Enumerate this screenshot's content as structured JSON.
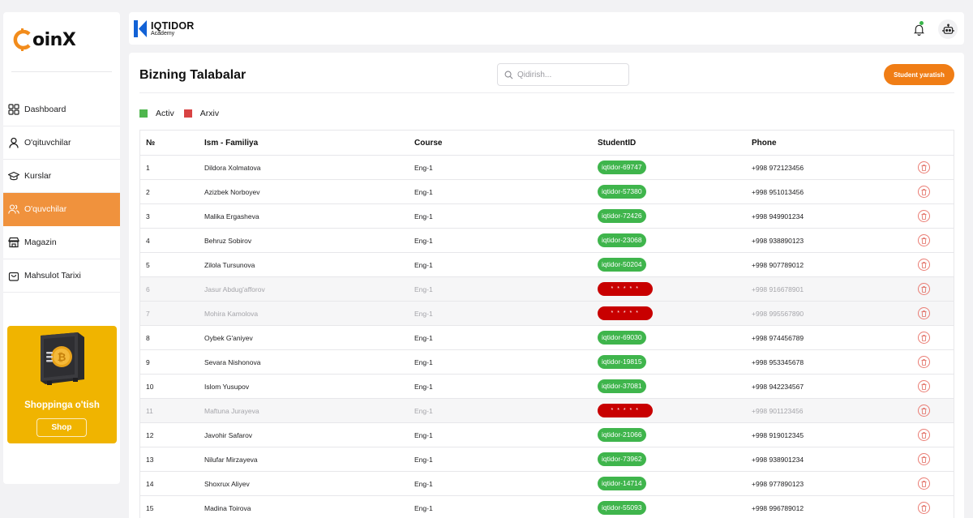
{
  "sidebar": {
    "logo_text": "oinX",
    "items": [
      {
        "label": "Dashboard",
        "icon": "grid-icon",
        "active": false
      },
      {
        "label": "O'qituvchilar",
        "icon": "user-icon",
        "active": false
      },
      {
        "label": "Kurslar",
        "icon": "graduation-cap-icon",
        "active": false
      },
      {
        "label": "O'quvchilar",
        "icon": "users-icon",
        "active": true
      },
      {
        "label": "Magazin",
        "icon": "store-icon",
        "active": false
      },
      {
        "label": "Mahsulot Tarixi",
        "icon": "shopping-bag-icon",
        "active": false
      }
    ],
    "promo": {
      "title": "Shoppinga o'tish",
      "button": "Shop"
    }
  },
  "header": {
    "brand_name": "IQTIDOR",
    "brand_sub": "Academy"
  },
  "main": {
    "title": "Bizning Talabalar",
    "search_placeholder": "Qidirish...",
    "create_button": "Student yaratish",
    "legend": [
      {
        "label": "Activ",
        "color": "#4fb64e"
      },
      {
        "label": "Arxiv",
        "color": "#d84343"
      }
    ],
    "columns": [
      "№",
      "Ism - Familiya",
      "Course",
      "StudentID",
      "Phone"
    ],
    "rows": [
      {
        "no": "1",
        "name": "Dildora Xolmatova",
        "course": "Eng-1",
        "id": "iqtidor-69747",
        "phone": "+998 972123456",
        "archived": false
      },
      {
        "no": "2",
        "name": "Azizbek Norboyev",
        "course": "Eng-1",
        "id": "iqtidor-57380",
        "phone": "+998 951013456",
        "archived": false
      },
      {
        "no": "3",
        "name": "Malika Ergasheva",
        "course": "Eng-1",
        "id": "iqtidor-72426",
        "phone": "+998 949901234",
        "archived": false
      },
      {
        "no": "4",
        "name": "Behruz Sobirov",
        "course": "Eng-1",
        "id": "iqtidor-23068",
        "phone": "+998 938890123",
        "archived": false
      },
      {
        "no": "5",
        "name": "Zilola Tursunova",
        "course": "Eng-1",
        "id": "iqtidor-50204",
        "phone": "+998 907789012",
        "archived": false
      },
      {
        "no": "6",
        "name": "Jasur Abdug'afforov",
        "course": "Eng-1",
        "id": "* * * * *",
        "phone": "+998 916678901",
        "archived": true
      },
      {
        "no": "7",
        "name": "Mohira Kamolova",
        "course": "Eng-1",
        "id": "* * * * *",
        "phone": "+998 995567890",
        "archived": true
      },
      {
        "no": "8",
        "name": "Oybek G'aniyev",
        "course": "Eng-1",
        "id": "iqtidor-69030",
        "phone": "+998 974456789",
        "archived": false
      },
      {
        "no": "9",
        "name": "Sevara Nishonova",
        "course": "Eng-1",
        "id": "iqtidor-19815",
        "phone": "+998 953345678",
        "archived": false
      },
      {
        "no": "10",
        "name": "Islom Yusupov",
        "course": "Eng-1",
        "id": "iqtidor-37081",
        "phone": "+998 942234567",
        "archived": false
      },
      {
        "no": "11",
        "name": "Maftuna Jurayeva",
        "course": "Eng-1",
        "id": "* * * * *",
        "phone": "+998 901123456",
        "archived": true
      },
      {
        "no": "12",
        "name": "Javohir Safarov",
        "course": "Eng-1",
        "id": "iqtidor-21066",
        "phone": "+998 919012345",
        "archived": false
      },
      {
        "no": "13",
        "name": "Nilufar Mirzayeva",
        "course": "Eng-1",
        "id": "iqtidor-73962",
        "phone": "+998 938901234",
        "archived": false
      },
      {
        "no": "14",
        "name": "Shoxrux Aliyev",
        "course": "Eng-1",
        "id": "iqtidor-14714",
        "phone": "+998 977890123",
        "archived": false
      },
      {
        "no": "15",
        "name": "Madina Toirova",
        "course": "Eng-1",
        "id": "iqtidor-55093",
        "phone": "+998 996789012",
        "archived": false
      }
    ]
  }
}
